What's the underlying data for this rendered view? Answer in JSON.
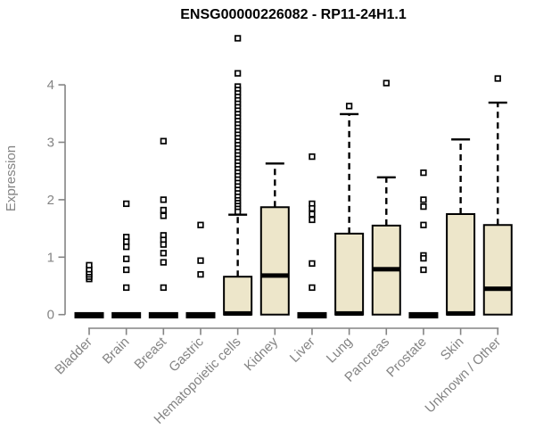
{
  "page": {
    "background": "#ffffff"
  },
  "chart_data": {
    "type": "boxplot",
    "title": "ENSG00000226082 - RP11-24H1.1",
    "xlabel": "",
    "ylabel": "Expression",
    "ylim": [
      0,
      4
    ],
    "yticks": [
      0,
      1,
      2,
      3,
      4
    ],
    "grid": false,
    "legend": "none",
    "categories": [
      "Bladder",
      "Brain",
      "Breast",
      "Gastric",
      "Hematopoietic cells",
      "Kidney",
      "Liver",
      "Lung",
      "Pancreas",
      "Prostate",
      "Skin",
      "Unknown / Other"
    ],
    "boxes": [
      {
        "label": "Bladder",
        "q1": 0,
        "median": 0,
        "q3": 0,
        "whisker_low": 0,
        "whisker_high": 0,
        "outliers": [
          0.62,
          0.66,
          0.7,
          0.74,
          0.79,
          0.86
        ]
      },
      {
        "label": "Brain",
        "q1": 0,
        "median": 0,
        "q3": 0,
        "whisker_low": 0,
        "whisker_high": 0,
        "outliers": [
          1.93,
          1.35,
          1.27,
          1.18,
          0.97,
          0.78,
          0.47
        ]
      },
      {
        "label": "Breast",
        "q1": 0,
        "median": 0,
        "q3": 0,
        "whisker_low": 0,
        "whisker_high": 0,
        "outliers": [
          3.02,
          2.0,
          1.82,
          1.72,
          1.38,
          1.3,
          1.22,
          1.07,
          0.91,
          0.47
        ]
      },
      {
        "label": "Gastric",
        "q1": 0,
        "median": 0,
        "q3": 0,
        "whisker_low": 0,
        "whisker_high": 0,
        "outliers": [
          1.56,
          0.94,
          0.7
        ]
      },
      {
        "label": "Hematopoietic cells",
        "q1": 0,
        "median": 0.02,
        "q3": 0.66,
        "whisker_low": 0,
        "whisker_high": 1.74,
        "outliers": [
          4.81,
          4.2,
          3.97,
          3.91,
          3.85,
          3.79,
          3.73,
          3.67,
          3.61,
          3.55,
          3.49,
          3.43,
          3.37,
          3.31,
          3.25,
          3.19,
          3.13,
          3.07,
          3.01,
          2.95,
          2.89,
          2.83,
          2.77,
          2.71,
          2.65,
          2.59,
          2.53,
          2.47,
          2.41,
          2.35,
          2.29,
          2.23,
          2.17,
          2.11,
          2.05,
          1.99,
          1.94,
          1.89,
          1.84,
          1.79
        ]
      },
      {
        "label": "Kidney",
        "q1": 0,
        "median": 0.68,
        "q3": 1.87,
        "whisker_low": 0,
        "whisker_high": 2.63,
        "outliers": []
      },
      {
        "label": "Liver",
        "q1": 0,
        "median": 0,
        "q3": 0,
        "whisker_low": 0,
        "whisker_high": 0,
        "outliers": [
          2.75,
          1.93,
          1.85,
          1.75,
          1.65,
          0.89,
          0.47
        ]
      },
      {
        "label": "Lung",
        "q1": 0,
        "median": 0.02,
        "q3": 1.41,
        "whisker_low": 0,
        "whisker_high": 3.49,
        "outliers": [
          3.63
        ]
      },
      {
        "label": "Pancreas",
        "q1": 0,
        "median": 0.79,
        "q3": 1.55,
        "whisker_low": 0,
        "whisker_high": 2.39,
        "outliers": [
          4.03
        ]
      },
      {
        "label": "Prostate",
        "q1": 0,
        "median": 0,
        "q3": 0,
        "whisker_low": 0,
        "whisker_high": 0,
        "outliers": [
          2.47,
          2.0,
          1.88,
          1.56,
          1.03,
          0.98,
          0.78
        ]
      },
      {
        "label": "Skin",
        "q1": 0,
        "median": 0.02,
        "q3": 1.75,
        "whisker_low": 0,
        "whisker_high": 3.05,
        "outliers": []
      },
      {
        "label": "Unknown / Other",
        "q1": 0,
        "median": 0.45,
        "q3": 1.56,
        "whisker_low": 0,
        "whisker_high": 3.69,
        "outliers": [
          4.11
        ]
      }
    ],
    "colors": {
      "box_fill": "#EDE6CA",
      "box_stroke": "#000000",
      "median": "#000000",
      "whisker": "#000000",
      "outlier_stroke": "#000000",
      "axis": "#848484",
      "tick_label": "#848484",
      "title": "#000000",
      "background": "#ffffff"
    }
  }
}
